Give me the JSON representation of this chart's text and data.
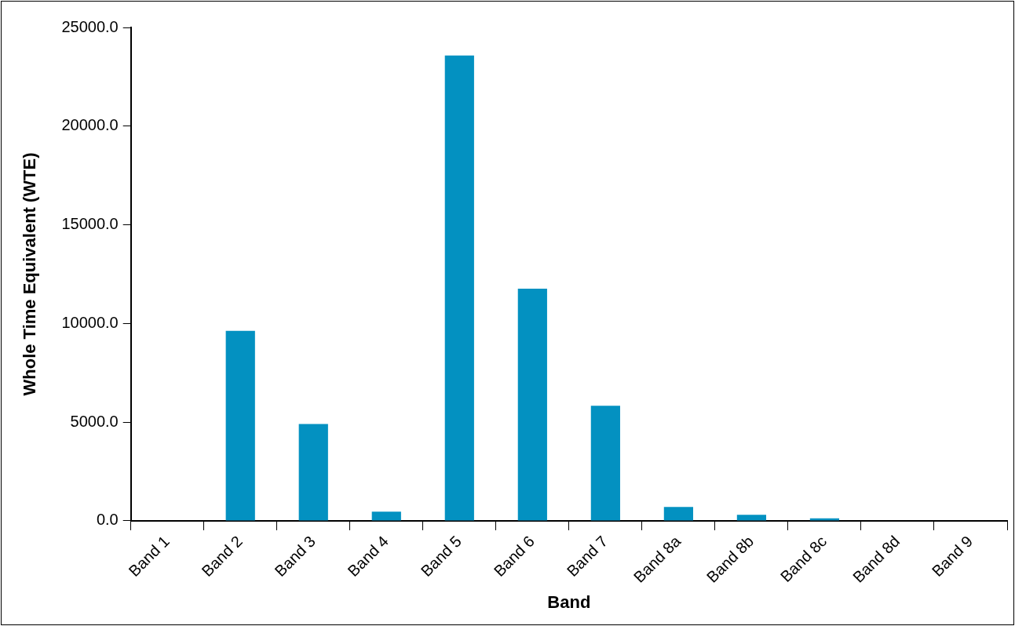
{
  "chart_data": {
    "type": "bar",
    "xlabel": "Band",
    "ylabel": "Whole Time Equivalent (WTE)",
    "categories": [
      "Band 1",
      "Band 2",
      "Band 3",
      "Band 4",
      "Band 5",
      "Band 6",
      "Band 7",
      "Band 8a",
      "Band 8b",
      "Band 8c",
      "Band 8d",
      "Band 9"
    ],
    "values": [
      0,
      9630,
      4910,
      460,
      23580,
      11760,
      5830,
      700,
      310,
      130,
      0,
      0
    ],
    "color": "#0391c1",
    "ylim": [
      0,
      25000
    ],
    "yticks": [
      {
        "value": 0,
        "label": "0.0"
      },
      {
        "value": 5000,
        "label": "5000.0"
      },
      {
        "value": 10000,
        "label": "10000.0"
      },
      {
        "value": 15000,
        "label": "15000.0"
      },
      {
        "value": 20000,
        "label": "20000.0"
      },
      {
        "value": 25000,
        "label": "25000.0"
      }
    ],
    "grid": false,
    "legend": false
  }
}
